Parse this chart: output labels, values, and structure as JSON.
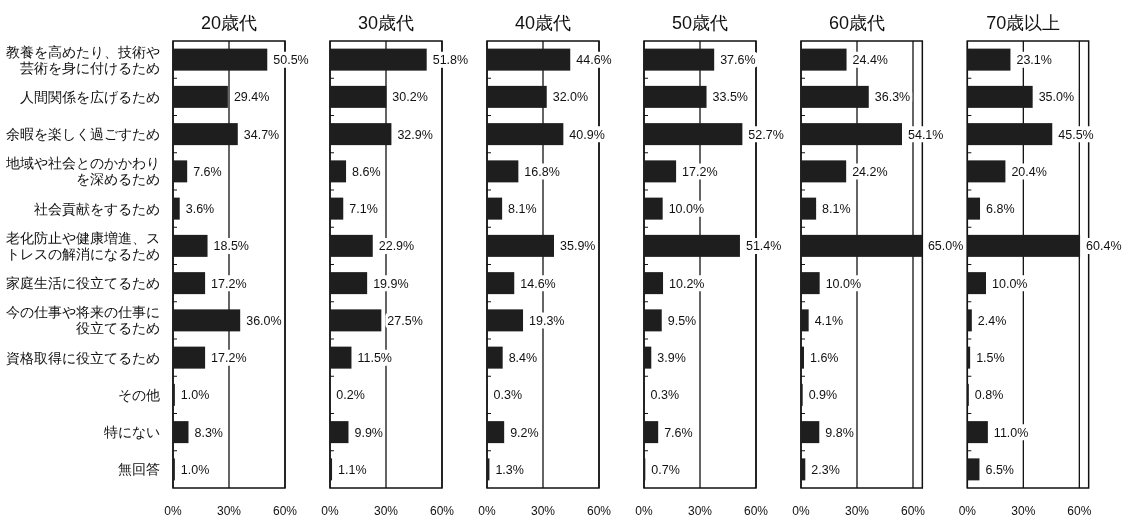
{
  "chart_data": [
    {
      "type": "bar",
      "orientation": "horizontal",
      "title": "20歳代",
      "color": "#1e1e1e",
      "grid": "x",
      "xlim": [
        0,
        60
      ],
      "xticks": [
        {
          "value": 0,
          "label": "0%"
        },
        {
          "value": 30,
          "label": "30%"
        },
        {
          "value": 60,
          "label": "60%"
        }
      ],
      "categories": [
        "教養を高めたり、技術や芸術を身に付けるため",
        "人間関係を広げるため",
        "余暇を楽しく過ごすため",
        "地域や社会とのかかわりを深めるため",
        "社会貢献をするため",
        "老化防止や健康増進、ストレスの解消になるため",
        "家庭生活に役立てるため",
        "今の仕事や将来の仕事に役立てるため",
        "資格取得に役立てるため",
        "その他",
        "特にない",
        "無回答"
      ],
      "values": [
        50.5,
        29.4,
        34.7,
        7.6,
        3.6,
        18.5,
        17.2,
        36.0,
        17.2,
        1.0,
        8.3,
        1.0
      ],
      "value_labels": [
        "50.5%",
        "29.4%",
        "34.7%",
        "7.6%",
        "3.6%",
        "18.5%",
        "17.2%",
        "36.0%",
        "17.2%",
        "1.0%",
        "8.3%",
        "1.0%"
      ]
    },
    {
      "type": "bar",
      "orientation": "horizontal",
      "title": "30歳代",
      "color": "#1e1e1e",
      "grid": "x",
      "xlim": [
        0,
        60
      ],
      "xticks": [
        {
          "value": 0,
          "label": "0%"
        },
        {
          "value": 30,
          "label": "30%"
        },
        {
          "value": 60,
          "label": "60%"
        }
      ],
      "categories": [
        null,
        null,
        null,
        null,
        null,
        null,
        null,
        null,
        null,
        null,
        null,
        null
      ],
      "values": [
        51.8,
        30.2,
        32.9,
        8.6,
        7.1,
        22.9,
        19.9,
        27.5,
        11.5,
        0.2,
        9.9,
        1.1
      ],
      "value_labels": [
        "51.8%",
        "30.2%",
        "32.9%",
        "8.6%",
        "7.1%",
        "22.9%",
        "19.9%",
        "27.5%",
        "11.5%",
        "0.2%",
        "9.9%",
        "1.1%"
      ]
    },
    {
      "type": "bar",
      "orientation": "horizontal",
      "title": "40歳代",
      "color": "#1e1e1e",
      "grid": "x",
      "xlim": [
        0,
        60
      ],
      "xticks": [
        {
          "value": 0,
          "label": "0%"
        },
        {
          "value": 30,
          "label": "30%"
        },
        {
          "value": 60,
          "label": "60%"
        }
      ],
      "categories": [
        null,
        null,
        null,
        null,
        null,
        null,
        null,
        null,
        null,
        null,
        null,
        null
      ],
      "values": [
        44.6,
        32.0,
        40.9,
        16.8,
        8.1,
        35.9,
        14.6,
        19.3,
        8.4,
        0.3,
        9.2,
        1.3
      ],
      "value_labels": [
        "44.6%",
        "32.0%",
        "40.9%",
        "16.8%",
        "8.1%",
        "35.9%",
        "14.6%",
        "19.3%",
        "8.4%",
        "0.3%",
        "9.2%",
        "1.3%"
      ]
    },
    {
      "type": "bar",
      "orientation": "horizontal",
      "title": "50歳代",
      "color": "#1e1e1e",
      "grid": "x",
      "xlim": [
        0,
        60
      ],
      "xticks": [
        {
          "value": 0,
          "label": "0%"
        },
        {
          "value": 30,
          "label": "30%"
        },
        {
          "value": 60,
          "label": "60%"
        }
      ],
      "categories": [
        null,
        null,
        null,
        null,
        null,
        null,
        null,
        null,
        null,
        null,
        null,
        null
      ],
      "values": [
        37.6,
        33.5,
        52.7,
        17.2,
        10.0,
        51.4,
        10.2,
        9.5,
        3.9,
        0.3,
        7.6,
        0.7
      ],
      "value_labels": [
        "37.6%",
        "33.5%",
        "52.7%",
        "17.2%",
        "10.0%",
        "51.4%",
        "10.2%",
        "9.5%",
        "3.9%",
        "0.3%",
        "7.6%",
        "0.7%"
      ]
    },
    {
      "type": "bar",
      "orientation": "horizontal",
      "title": "60歳代",
      "color": "#1e1e1e",
      "grid": "x",
      "xlim": [
        0,
        65
      ],
      "xticks": [
        {
          "value": 0,
          "label": "0%"
        },
        {
          "value": 30,
          "label": "30%"
        },
        {
          "value": 60,
          "label": "60%"
        }
      ],
      "categories": [
        null,
        null,
        null,
        null,
        null,
        null,
        null,
        null,
        null,
        null,
        null,
        null
      ],
      "values": [
        24.4,
        36.3,
        54.1,
        24.2,
        8.1,
        65.0,
        10.0,
        4.1,
        1.6,
        0.9,
        9.8,
        2.3
      ],
      "value_labels": [
        "24.4%",
        "36.3%",
        "54.1%",
        "24.2%",
        "8.1%",
        "65.0%",
        "10.0%",
        "4.1%",
        "1.6%",
        "0.9%",
        "9.8%",
        "2.3%"
      ]
    },
    {
      "type": "bar",
      "orientation": "horizontal",
      "title": "70歳以上",
      "color": "#1e1e1e",
      "grid": "x",
      "xlim": [
        0,
        65
      ],
      "xticks": [
        {
          "value": 0,
          "label": "0%"
        },
        {
          "value": 30,
          "label": "30%"
        },
        {
          "value": 60,
          "label": "60%"
        }
      ],
      "categories": [
        null,
        null,
        null,
        null,
        null,
        null,
        null,
        null,
        null,
        null,
        null,
        null
      ],
      "values": [
        23.1,
        35.0,
        45.5,
        20.4,
        6.8,
        60.4,
        10.0,
        2.4,
        1.5,
        0.8,
        11.0,
        6.5
      ],
      "value_labels": [
        "23.1%",
        "35.0%",
        "45.5%",
        "20.4%",
        "6.8%",
        "60.4%",
        "10.0%",
        "2.4%",
        "1.5%",
        "0.8%",
        "11.0%",
        "6.5%"
      ]
    }
  ]
}
